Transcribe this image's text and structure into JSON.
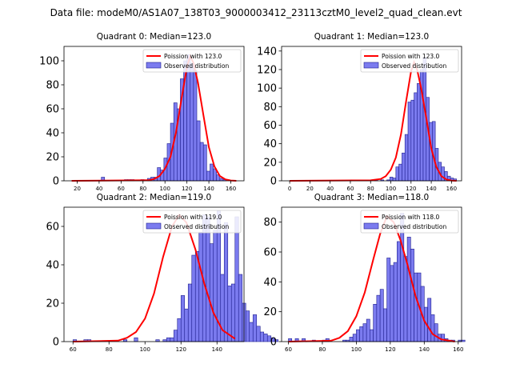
{
  "figure_title": "Data file: modeM0/AS1A07_138T03_9000003412_23113cztM0_level2_quad_clean.evt",
  "colors": {
    "bar_fill": "#7b7bef",
    "bar_edge": "#1f1f8f",
    "curve": "#ff0000",
    "axes": "#000000"
  },
  "chart_data": [
    {
      "type": "bar",
      "title": "Quadrant 0: Median=123.0",
      "xlim": [
        8,
        172
      ],
      "ylim": [
        0,
        112
      ],
      "xticks": [
        20,
        40,
        60,
        80,
        100,
        120,
        140,
        160
      ],
      "yticks": [
        0,
        20,
        40,
        60,
        80,
        100
      ],
      "legend": {
        "position": "top-right",
        "curve_label": "Poission with 123.0",
        "hist_label": "Observed distribution"
      },
      "hist": {
        "bin_start": 42,
        "bin_width": 3,
        "counts": [
          3,
          0,
          0,
          0,
          0,
          0,
          0,
          1,
          1,
          1,
          0,
          0,
          1,
          0,
          2,
          3,
          3,
          11,
          9,
          19,
          31,
          48,
          65,
          60,
          85,
          100,
          105,
          98,
          92,
          50,
          32,
          30,
          8,
          14,
          10,
          5,
          2,
          1
        ]
      },
      "curve": {
        "x": [
          15,
          85,
          90,
          95,
          100,
          105,
          110,
          115,
          120,
          123,
          126,
          130,
          135,
          140,
          145,
          150,
          155,
          160,
          165
        ],
        "y": [
          0,
          0.5,
          1.5,
          4,
          10,
          20,
          40,
          68,
          95,
          104,
          98,
          82,
          55,
          28,
          12,
          4,
          1.2,
          0.3,
          0
        ]
      }
    },
    {
      "type": "bar",
      "title": "Quadrant 1: Median=123.0",
      "xlim": [
        -8,
        170
      ],
      "ylim": [
        0,
        145
      ],
      "xticks": [
        0,
        20,
        40,
        60,
        80,
        100,
        120,
        140,
        160
      ],
      "yticks": [
        0,
        20,
        40,
        60,
        80,
        100,
        120,
        140
      ],
      "legend": {
        "position": "top-right",
        "curve_label": "Poission with 123.0",
        "hist_label": "Observed distribution"
      },
      "hist": {
        "bin_start": 60,
        "bin_width": 3,
        "counts": [
          1,
          1,
          1,
          1,
          0,
          1,
          0,
          0,
          1,
          0,
          1,
          0,
          1,
          4,
          3,
          15,
          18,
          30,
          50,
          85,
          87,
          95,
          105,
          120,
          133,
          90,
          63,
          64,
          35,
          20,
          15,
          10,
          5,
          3,
          2
        ]
      },
      "curve": {
        "x": [
          0,
          80,
          90,
          95,
          100,
          105,
          110,
          115,
          120,
          123,
          126,
          130,
          135,
          140,
          145,
          150,
          155,
          160,
          165
        ],
        "y": [
          0,
          0.5,
          2,
          5,
          12,
          25,
          50,
          85,
          118,
          128,
          120,
          100,
          68,
          35,
          15,
          5,
          1.5,
          0.3,
          0
        ]
      }
    },
    {
      "type": "bar",
      "title": "Quadrant 2: Median=119.0",
      "xlim": [
        55,
        155
      ],
      "ylim": [
        0,
        70
      ],
      "xticks": [
        60,
        80,
        100,
        120,
        140
      ],
      "yticks": [
        0,
        20,
        40,
        60
      ],
      "legend": {
        "position": "top-right",
        "curve_label": "Poission with 119.0",
        "hist_label": "Observed distribution"
      },
      "hist": {
        "bin_start": 60,
        "bin_width": 2,
        "counts": [
          1,
          0,
          0,
          1,
          1,
          0,
          0,
          0,
          0,
          0,
          0,
          0,
          0,
          0,
          1,
          0,
          0,
          2,
          0,
          0,
          0,
          0,
          0,
          1,
          0,
          1,
          2,
          2,
          6,
          12,
          24,
          17,
          30,
          45,
          47,
          57,
          66,
          65,
          51,
          58,
          68,
          35,
          62,
          29,
          30,
          65,
          35,
          20,
          16,
          10,
          14,
          8,
          5,
          4,
          3,
          2,
          1
        ]
      },
      "curve": {
        "x": [
          60,
          85,
          90,
          95,
          100,
          105,
          110,
          115,
          119,
          123,
          128,
          133,
          138,
          143,
          150
        ],
        "y": [
          0,
          0.5,
          2,
          5,
          12,
          25,
          44,
          60,
          66,
          62,
          48,
          30,
          15,
          6,
          1.5
        ]
      }
    },
    {
      "type": "bar",
      "title": "Quadrant 3: Median=118.0",
      "xlim": [
        56,
        162
      ],
      "ylim": [
        0,
        90
      ],
      "xticks": [
        60,
        80,
        100,
        120,
        140,
        160
      ],
      "yticks": [
        0,
        20,
        40,
        60,
        80
      ],
      "legend": {
        "position": "top-right",
        "curve_label": "Poission with 118.0",
        "hist_label": "Observed distribution"
      },
      "hist": {
        "bin_start": 60,
        "bin_width": 2,
        "counts": [
          2,
          0,
          2,
          0,
          2,
          0,
          0,
          1,
          0,
          0,
          1,
          2,
          0,
          0,
          0,
          0,
          1,
          1,
          3,
          5,
          8,
          10,
          12,
          15,
          8,
          25,
          31,
          35,
          22,
          56,
          51,
          53,
          67,
          86,
          57,
          70,
          62,
          46,
          46,
          37,
          23,
          29,
          18,
          12,
          5,
          5,
          2,
          1,
          1,
          0,
          1,
          1
        ]
      },
      "curve": {
        "x": [
          60,
          85,
          90,
          95,
          100,
          105,
          110,
          114,
          118,
          122,
          126,
          130,
          135,
          140,
          145,
          150,
          158
        ],
        "y": [
          0,
          0.6,
          2.5,
          7,
          17,
          33,
          55,
          72,
          84,
          80,
          68,
          52,
          30,
          14,
          5,
          1.5,
          0
        ]
      }
    }
  ]
}
